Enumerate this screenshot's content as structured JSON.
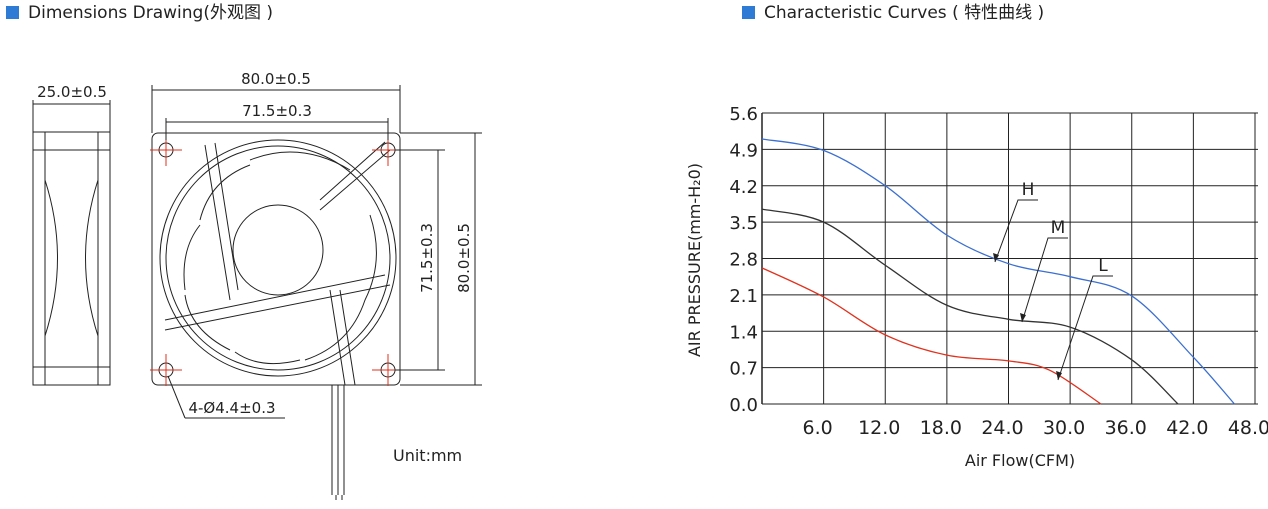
{
  "drawing": {
    "title": "Dimensions Drawing(外观图 )",
    "dims": [
      "25.0±0.5",
      "80.0±0.5",
      "71.5±0.3",
      "71.5±0.3",
      "80.0±0.5",
      "4-Ø4.4±0.3"
    ],
    "unit": "Unit:mm"
  },
  "chart_data": {
    "type": "line",
    "title": "Characteristic Curves ( 特性曲线 )",
    "x_label": "Air Flow(CFM)",
    "y_label": "AIR PRESSURE(mm-H₂0)",
    "xlim": [
      0,
      48
    ],
    "ylim": [
      0,
      5.6
    ],
    "xticks": [
      {
        "value": 6,
        "label": "6.0"
      },
      {
        "value": 12,
        "label": "12.0"
      },
      {
        "value": 18,
        "label": "18.0"
      },
      {
        "value": 24,
        "label": "24.0"
      },
      {
        "value": 30,
        "label": "30.0"
      },
      {
        "value": 36,
        "label": "36.0"
      },
      {
        "value": 42,
        "label": "42.0"
      },
      {
        "value": 48,
        "label": "48.0"
      }
    ],
    "yticks": [
      {
        "value": 0,
        "label": "0.0"
      },
      0.7,
      1.4,
      2.1,
      2.8,
      3.5,
      4.2,
      4.9,
      5.6
    ],
    "grid": true,
    "series": [
      {
        "name": "H",
        "color": "#3b6fd1",
        "x": [
          0,
          6,
          12,
          18,
          24,
          30,
          36,
          42,
          46
        ],
        "values": [
          5.1,
          4.88,
          4.2,
          3.25,
          2.7,
          2.45,
          2.08,
          0.9,
          0
        ]
      },
      {
        "name": "M",
        "color": "#333333",
        "x": [
          0,
          6,
          12,
          18,
          24,
          30,
          36,
          40.5
        ],
        "values": [
          3.75,
          3.5,
          2.67,
          1.9,
          1.63,
          1.48,
          0.85,
          0
        ]
      },
      {
        "name": "L",
        "color": "#e0321e",
        "x": [
          0,
          6,
          12,
          18,
          24,
          28,
          33
        ],
        "values": [
          2.62,
          2.06,
          1.33,
          0.94,
          0.83,
          0.65,
          0
        ]
      }
    ]
  }
}
